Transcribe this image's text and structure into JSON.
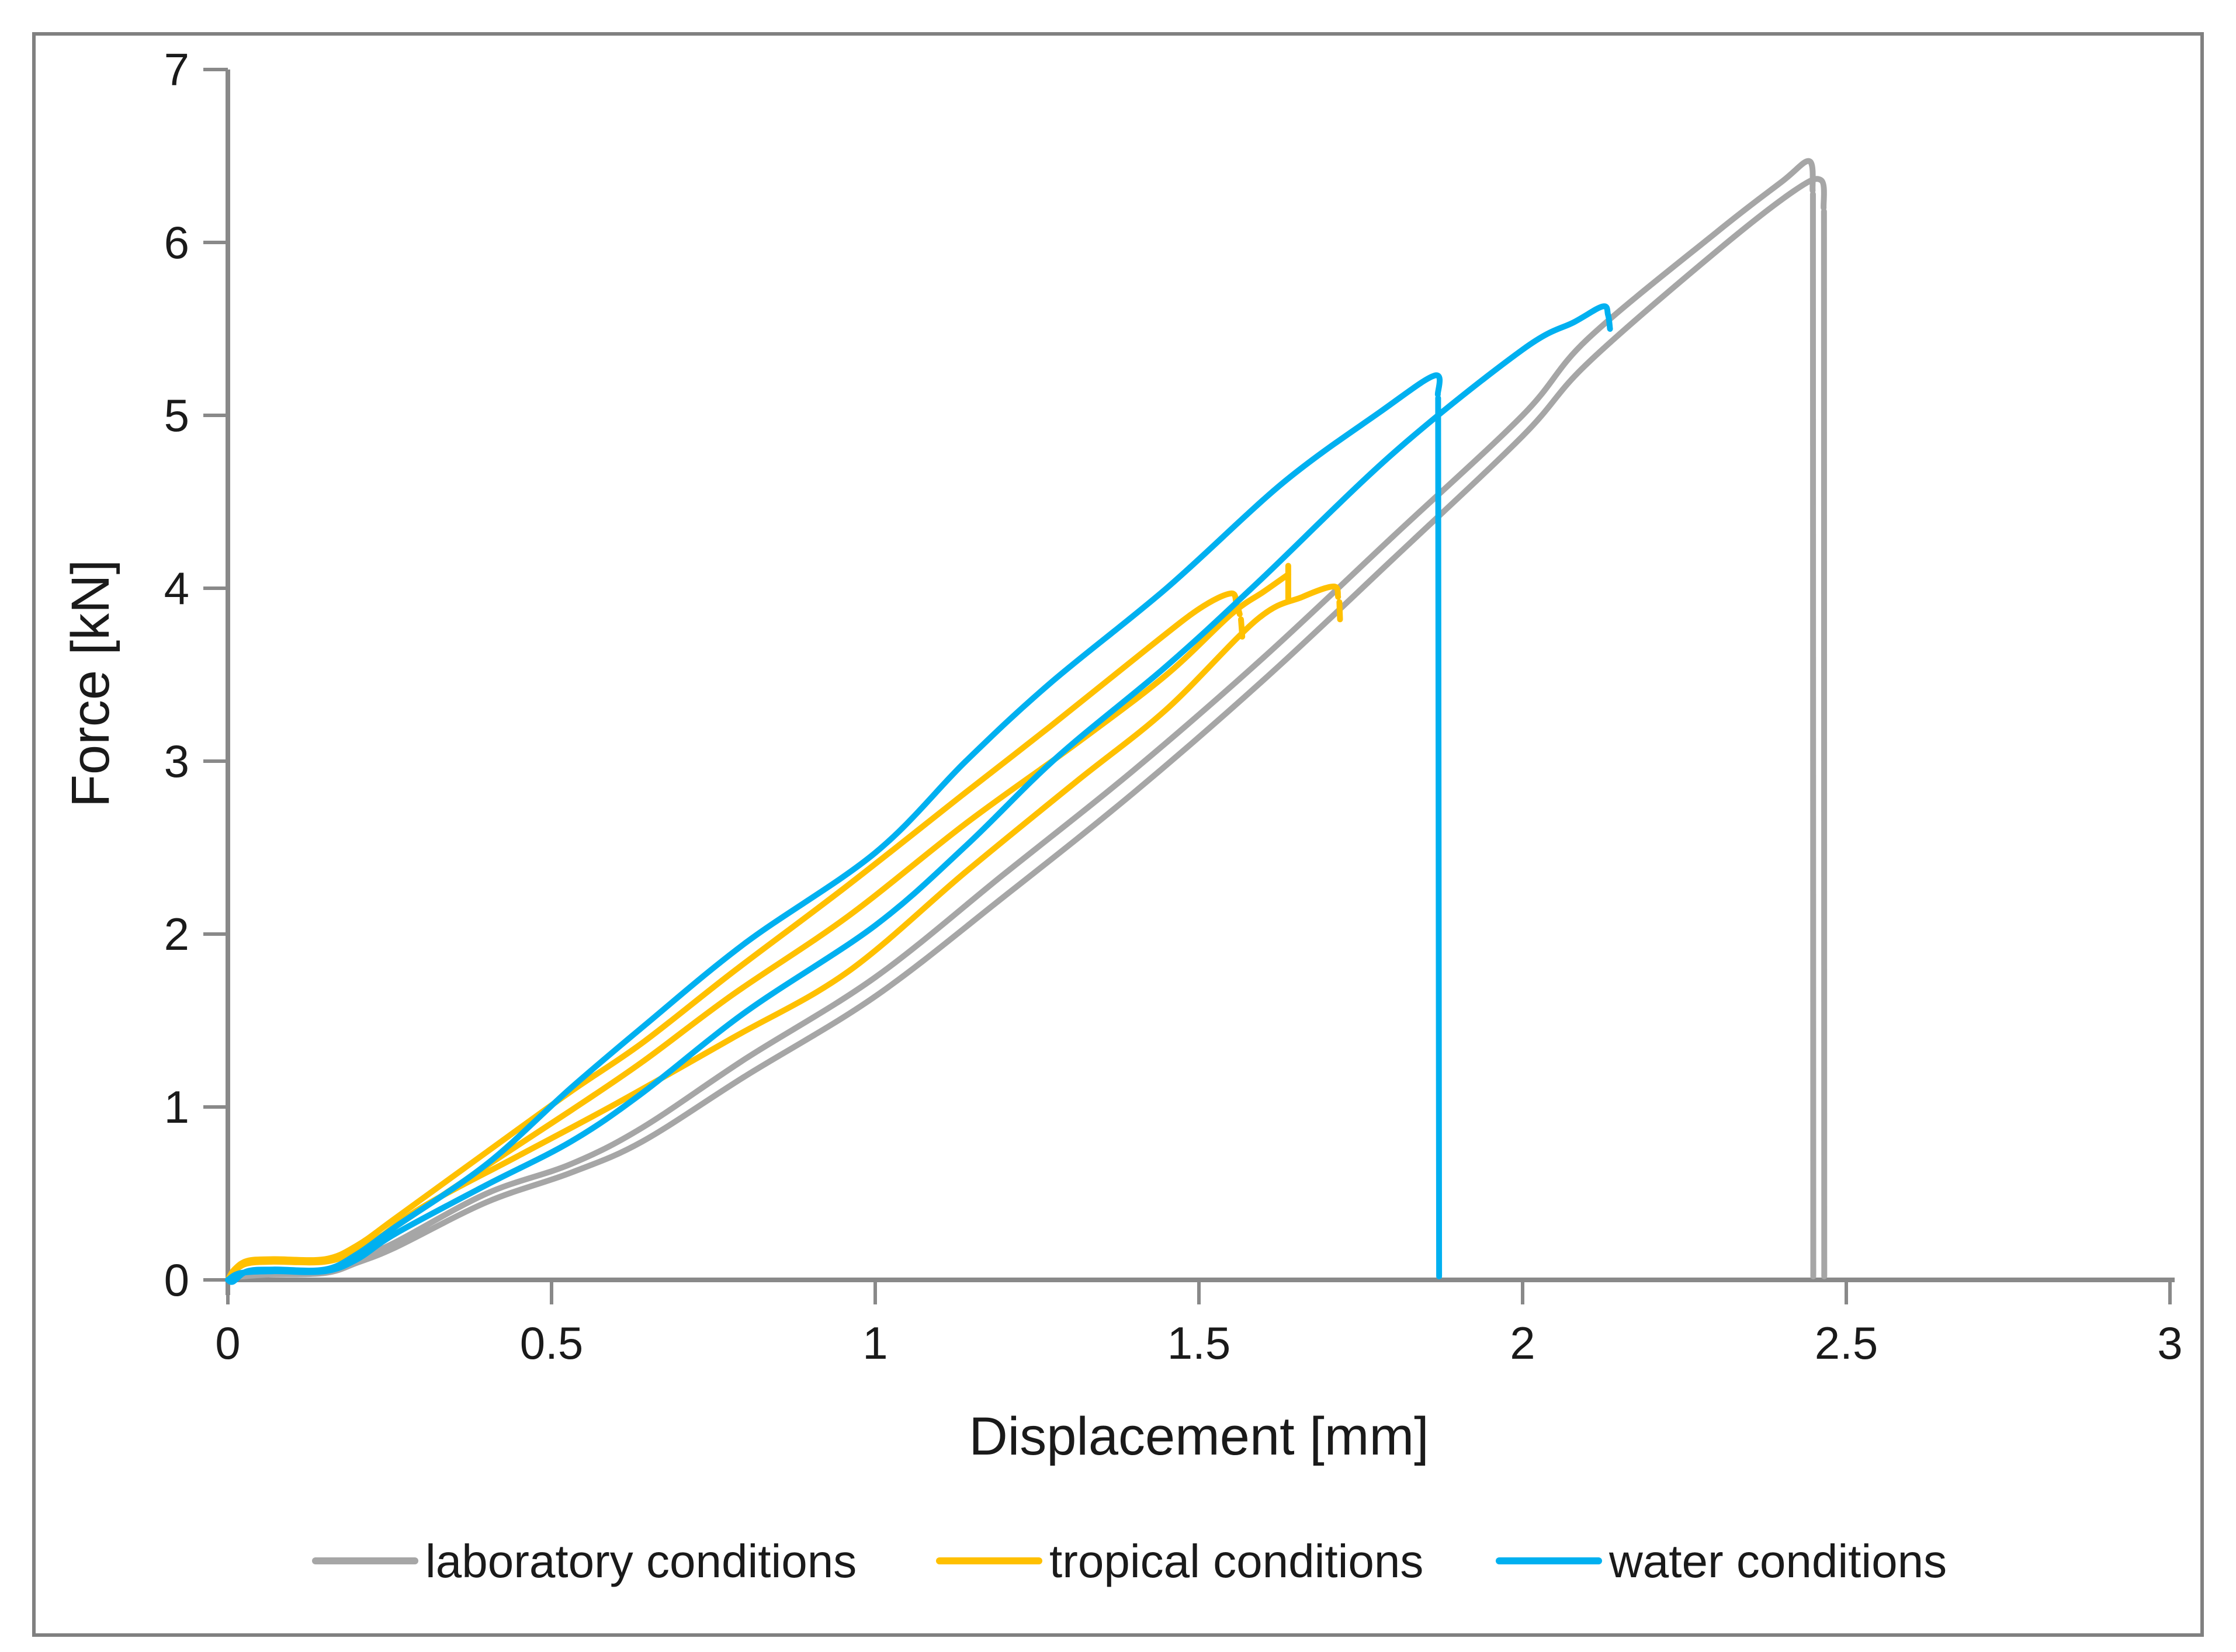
{
  "chart_data": {
    "type": "line",
    "title": "",
    "xlabel": "Displacement [mm]",
    "ylabel": "Force [kN]",
    "xlim": [
      0,
      3
    ],
    "ylim": [
      0,
      7
    ],
    "x_ticks": [
      "0",
      "0.5",
      "1",
      "1.5",
      "2",
      "2.5",
      "3"
    ],
    "x_tick_values": [
      0,
      0.5,
      1,
      1.5,
      2,
      2.5,
      3
    ],
    "y_ticks": [
      "0",
      "1",
      "2",
      "3",
      "4",
      "5",
      "6",
      "7"
    ],
    "y_tick_values": [
      0,
      1,
      2,
      3,
      4,
      5,
      6,
      7
    ],
    "grid": false,
    "legend_position": "bottom",
    "series": [
      {
        "name": "laboratory conditions",
        "color": "#A6A6A6",
        "peaks": [
          {
            "x": 2.44,
            "y": 6.47
          },
          {
            "x": 2.46,
            "y": 6.36
          }
        ],
        "strokes": [
          [
            [
              0,
              0
            ],
            [
              0.01,
              0.02
            ],
            [
              0.06,
              0.035
            ],
            [
              0.15,
              0.045
            ],
            [
              0.2,
              0.12
            ],
            [
              0.26,
              0.22
            ],
            [
              0.4,
              0.5
            ],
            [
              0.53,
              0.67
            ],
            [
              0.64,
              0.88
            ],
            [
              0.8,
              1.28
            ],
            [
              1.0,
              1.75
            ],
            [
              1.2,
              2.35
            ],
            [
              1.4,
              2.95
            ],
            [
              1.6,
              3.6
            ],
            [
              1.8,
              4.3
            ],
            [
              2.0,
              5.0
            ],
            [
              2.1,
              5.44
            ],
            [
              2.3,
              6.06
            ],
            [
              2.4,
              6.35
            ],
            [
              2.443,
              6.47
            ],
            [
              2.448,
              6.3
            ]
          ],
          [
            [
              2.4485,
              6.28
            ],
            [
              2.449,
              0.02
            ]
          ],
          [
            [
              0,
              0
            ],
            [
              0.01,
              0.015
            ],
            [
              0.06,
              0.03
            ],
            [
              0.15,
              0.04
            ],
            [
              0.2,
              0.1
            ],
            [
              0.26,
              0.19
            ],
            [
              0.4,
              0.45
            ],
            [
              0.53,
              0.62
            ],
            [
              0.64,
              0.8
            ],
            [
              0.8,
              1.18
            ],
            [
              1.0,
              1.64
            ],
            [
              1.2,
              2.22
            ],
            [
              1.4,
              2.82
            ],
            [
              1.6,
              3.47
            ],
            [
              1.8,
              4.17
            ],
            [
              2.0,
              4.88
            ],
            [
              2.1,
              5.3
            ],
            [
              2.3,
              5.95
            ],
            [
              2.42,
              6.3
            ],
            [
              2.461,
              6.36
            ],
            [
              2.465,
              6.2
            ]
          ],
          [
            [
              2.4655,
              6.18
            ],
            [
              2.466,
              0.02
            ]
          ]
        ]
      },
      {
        "name": "tropical conditions",
        "color": "#FFC000",
        "peaks": [
          {
            "x": 1.55,
            "y": 3.97
          },
          {
            "x": 1.71,
            "y": 4.01
          }
        ],
        "strokes": [
          [
            [
              0,
              0
            ],
            [
              0.01,
              0.06
            ],
            [
              0.03,
              0.11
            ],
            [
              0.07,
              0.12
            ],
            [
              0.15,
              0.12
            ],
            [
              0.2,
              0.2
            ],
            [
              0.26,
              0.36
            ],
            [
              0.4,
              0.74
            ],
            [
              0.53,
              1.09
            ],
            [
              0.64,
              1.37
            ],
            [
              0.78,
              1.78
            ],
            [
              0.957,
              2.28
            ],
            [
              1.14,
              2.82
            ],
            [
              1.27,
              3.2
            ],
            [
              1.42,
              3.65
            ],
            [
              1.5,
              3.88
            ],
            [
              1.549,
              3.97
            ],
            [
              1.558,
              3.91
            ],
            [
              1.563,
              3.85
            ]
          ],
          [
            [
              1.565,
              3.82
            ],
            [
              1.567,
              3.72
            ]
          ],
          [
            [
              0,
              0
            ],
            [
              0.01,
              0.05
            ],
            [
              0.03,
              0.095
            ],
            [
              0.07,
              0.105
            ],
            [
              0.15,
              0.105
            ],
            [
              0.2,
              0.17
            ],
            [
              0.26,
              0.31
            ],
            [
              0.4,
              0.66
            ],
            [
              0.53,
              0.98
            ],
            [
              0.64,
              1.26
            ],
            [
              0.78,
              1.65
            ],
            [
              0.957,
              2.1
            ],
            [
              1.14,
              2.64
            ],
            [
              1.31,
              3.1
            ],
            [
              1.45,
              3.5
            ],
            [
              1.55,
              3.85
            ],
            [
              1.6,
              3.98
            ],
            [
              1.638,
              4.08
            ]
          ],
          [
            [
              1.638,
              4.13
            ],
            [
              1.638,
              3.94
            ]
          ],
          [
            [
              0.22,
              0.2
            ],
            [
              0.3,
              0.42
            ],
            [
              0.45,
              0.72
            ],
            [
              0.6,
              1.02
            ],
            [
              0.78,
              1.4
            ],
            [
              0.957,
              1.78
            ],
            [
              1.14,
              2.36
            ],
            [
              1.31,
              2.88
            ],
            [
              1.45,
              3.3
            ],
            [
              1.59,
              3.82
            ],
            [
              1.66,
              3.95
            ],
            [
              1.708,
              4.01
            ],
            [
              1.715,
              3.95
            ]
          ],
          [
            [
              1.717,
              3.92
            ],
            [
              1.718,
              3.82
            ]
          ]
        ]
      },
      {
        "name": "water conditions",
        "color": "#00B0F0",
        "peaks": [
          {
            "x": 1.86,
            "y": 5.23
          },
          {
            "x": 2.13,
            "y": 5.63
          }
        ],
        "strokes": [
          [
            [
              0,
              0
            ],
            [
              0.008,
              -0.01
            ],
            [
              0.03,
              0.05
            ],
            [
              0.07,
              0.06
            ],
            [
              0.15,
              0.06
            ],
            [
              0.2,
              0.15
            ],
            [
              0.26,
              0.31
            ],
            [
              0.4,
              0.67
            ],
            [
              0.53,
              1.11
            ],
            [
              0.64,
              1.46
            ],
            [
              0.8,
              1.95
            ],
            [
              1.0,
              2.47
            ],
            [
              1.14,
              3.0
            ],
            [
              1.27,
              3.45
            ],
            [
              1.45,
              4.0
            ],
            [
              1.63,
              4.61
            ],
            [
              1.78,
              5.02
            ],
            [
              1.864,
              5.23
            ],
            [
              1.869,
              5.12
            ]
          ],
          [
            [
              1.8695,
              5.1
            ],
            [
              1.871,
              0.02
            ]
          ],
          [
            [
              0,
              0
            ],
            [
              0.02,
              0.04
            ],
            [
              0.07,
              0.05
            ],
            [
              0.15,
              0.05
            ],
            [
              0.2,
              0.12
            ],
            [
              0.26,
              0.27
            ],
            [
              0.4,
              0.55
            ],
            [
              0.53,
              0.8
            ],
            [
              0.64,
              1.08
            ],
            [
              0.8,
              1.55
            ],
            [
              1.0,
              2.05
            ],
            [
              1.14,
              2.51
            ],
            [
              1.28,
              3.02
            ],
            [
              1.45,
              3.55
            ],
            [
              1.59,
              4.03
            ],
            [
              1.8,
              4.78
            ],
            [
              2.0,
              5.38
            ],
            [
              2.08,
              5.54
            ],
            [
              2.124,
              5.63
            ],
            [
              2.132,
              5.58
            ],
            [
              2.135,
              5.5
            ]
          ]
        ]
      }
    ]
  },
  "legend": {
    "items": [
      {
        "label": "laboratory conditions",
        "color": "#A6A6A6"
      },
      {
        "label": "tropical conditions",
        "color": "#FFC000"
      },
      {
        "label": "water conditions",
        "color": "#00B0F0"
      }
    ]
  },
  "style": {
    "axis_color": "#898989",
    "border_color": "#808080",
    "text_color": "#1a1a1a",
    "background": "#ffffff",
    "line_width": 10
  }
}
